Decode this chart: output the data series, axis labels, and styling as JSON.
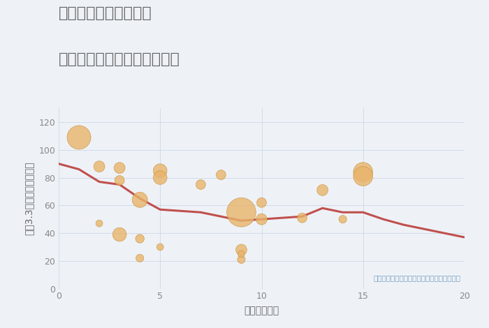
{
  "title_line1": "奈良県橿原市山本町の",
  "title_line2": "駅距離別中古マンション価格",
  "xlabel": "駅距離（分）",
  "ylabel": "坪（3.3㎡）単価（万円）",
  "annotation": "円の大きさは、取引のあった物件面積を示す",
  "background_color": "#eef2f7",
  "plot_bg_color": "#eef2f7",
  "xlim": [
    0,
    20
  ],
  "ylim": [
    0,
    130
  ],
  "xticks": [
    0,
    5,
    10,
    15,
    20
  ],
  "yticks": [
    0,
    20,
    40,
    60,
    80,
    100,
    120
  ],
  "scatter_x": [
    1,
    2,
    2,
    3,
    3,
    3,
    4,
    4,
    4,
    5,
    5,
    5,
    7,
    8,
    9,
    9,
    9,
    9,
    10,
    10,
    12,
    13,
    14,
    15,
    15
  ],
  "scatter_y": [
    109,
    88,
    47,
    87,
    78,
    39,
    64,
    36,
    22,
    85,
    80,
    30,
    75,
    82,
    55,
    28,
    21,
    25,
    62,
    50,
    51,
    71,
    50,
    84,
    81
  ],
  "scatter_size": [
    600,
    130,
    50,
    130,
    100,
    200,
    250,
    80,
    65,
    200,
    200,
    50,
    100,
    100,
    900,
    130,
    65,
    50,
    100,
    130,
    100,
    130,
    65,
    400,
    400
  ],
  "scatter_color": "#e8b46a",
  "scatter_alpha": 0.8,
  "scatter_edgecolor": "#c8903a",
  "scatter_edgewidth": 0.5,
  "line_x": [
    0,
    1,
    2,
    3,
    4,
    5,
    6,
    7,
    8,
    9,
    10,
    11,
    12,
    13,
    14,
    15,
    16,
    17,
    18,
    19,
    20
  ],
  "line_y": [
    90,
    86,
    77,
    75,
    65,
    57,
    56,
    55,
    52,
    49,
    50,
    51,
    52,
    58,
    55,
    55,
    50,
    46,
    43,
    40,
    37
  ],
  "line_color": "#c0504d",
  "line_width": 2.2,
  "grid_color": "#cdd8e8",
  "grid_alpha": 0.9,
  "title_color": "#666666",
  "axis_label_color": "#666666",
  "tick_color": "#888888",
  "annotation_color": "#7a9fc0",
  "title_fontsize": 16,
  "axis_label_fontsize": 10,
  "tick_fontsize": 9,
  "annotation_fontsize": 7.5
}
